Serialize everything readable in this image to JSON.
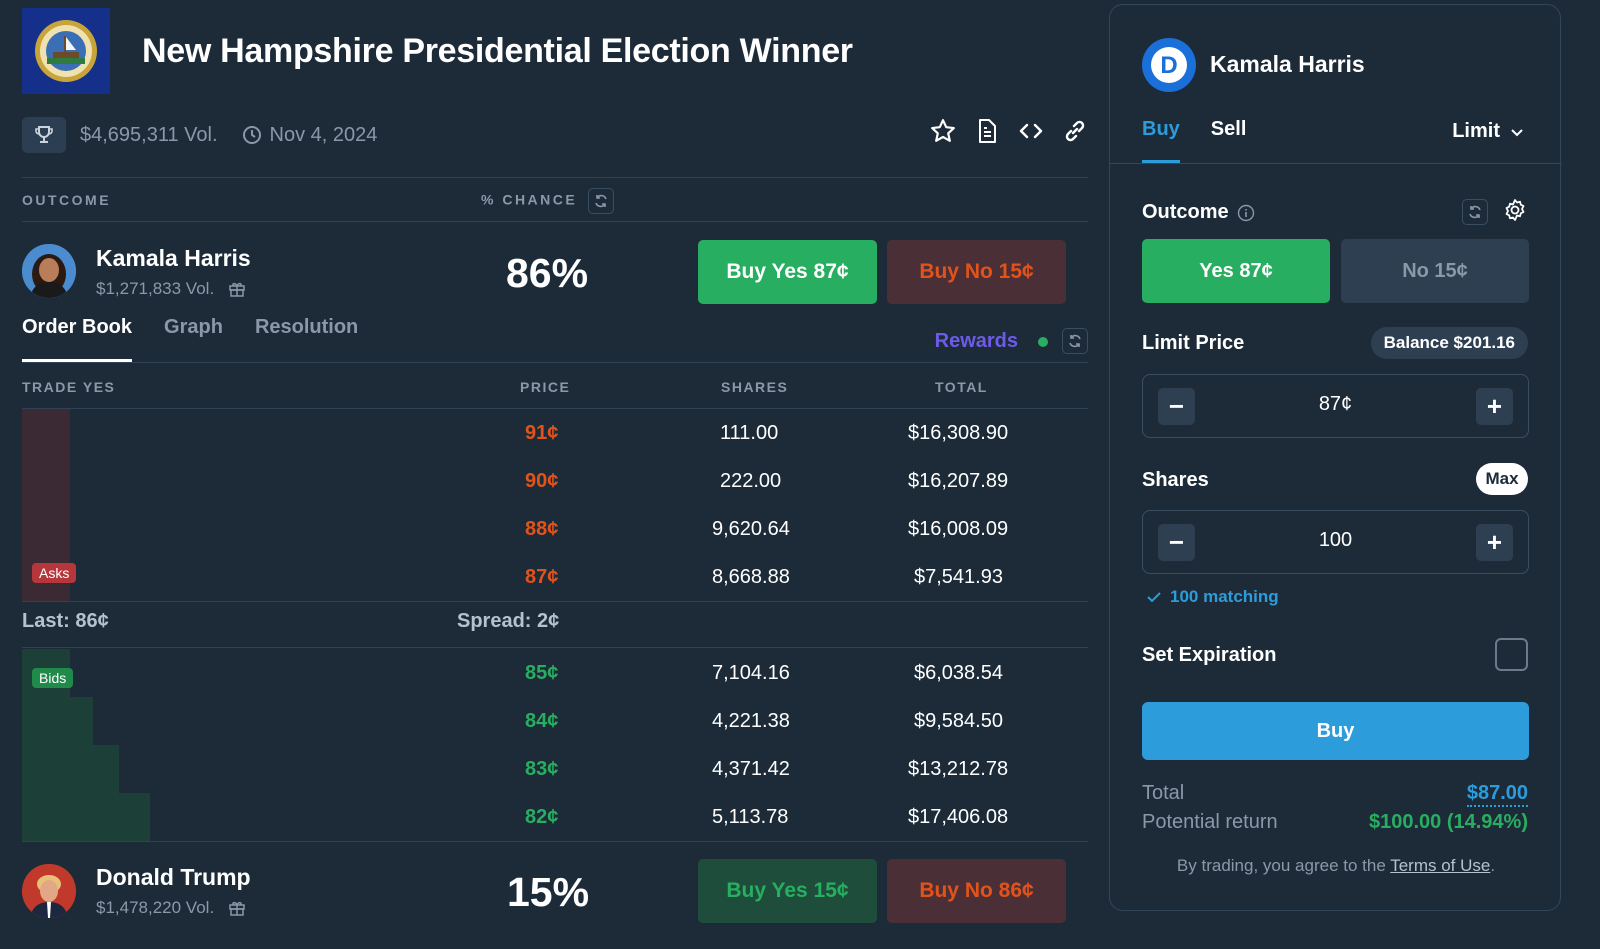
{
  "market": {
    "title": "New Hampshire Presidential Election Winner",
    "volume": "$4,695,311 Vol.",
    "date": "Nov 4, 2024"
  },
  "table_headers": {
    "outcome": "OUTCOME",
    "chance": "% CHANCE"
  },
  "candidates": [
    {
      "name": "Kamala Harris",
      "volume": "$1,271,833 Vol.",
      "chance": "86%",
      "buy_yes": "Buy Yes 87¢",
      "buy_no": "Buy No 15¢"
    },
    {
      "name": "Donald Trump",
      "volume": "$1,478,220 Vol.",
      "chance": "15%",
      "buy_yes": "Buy Yes 15¢",
      "buy_no": "Buy No 86¢"
    }
  ],
  "tabs": [
    "Order Book",
    "Graph",
    "Resolution"
  ],
  "rewards_label": "Rewards",
  "orderbook": {
    "headers": {
      "trade": "TRADE YES",
      "price": "PRICE",
      "shares": "SHARES",
      "total": "TOTAL"
    },
    "asks_label": "Asks",
    "bids_label": "Bids",
    "asks": [
      {
        "price": "91¢",
        "shares": "111.00",
        "total": "$16,308.90"
      },
      {
        "price": "90¢",
        "shares": "222.00",
        "total": "$16,207.89"
      },
      {
        "price": "88¢",
        "shares": "9,620.64",
        "total": "$16,008.09"
      },
      {
        "price": "87¢",
        "shares": "8,668.88",
        "total": "$7,541.93"
      }
    ],
    "last": "Last: 86¢",
    "spread": "Spread: 2¢",
    "bids": [
      {
        "price": "85¢",
        "shares": "7,104.16",
        "total": "$6,038.54"
      },
      {
        "price": "84¢",
        "shares": "4,221.38",
        "total": "$9,584.50"
      },
      {
        "price": "83¢",
        "shares": "4,371.42",
        "total": "$13,212.78"
      },
      {
        "price": "82¢",
        "shares": "5,113.78",
        "total": "$17,406.08"
      }
    ]
  },
  "panel": {
    "candidate": "Kamala Harris",
    "avatar_letter": "D",
    "tab_buy": "Buy",
    "tab_sell": "Sell",
    "order_type": "Limit",
    "outcome_label": "Outcome",
    "yes_btn": "Yes 87¢",
    "no_btn": "No 15¢",
    "limit_price_label": "Limit Price",
    "balance": "Balance $201.16",
    "limit_price": "87¢",
    "shares_label": "Shares",
    "max_label": "Max",
    "shares": "100",
    "matching": "100 matching",
    "expiration_label": "Set Expiration",
    "buy_label": "Buy",
    "total_label": "Total",
    "total_value": "$87.00",
    "return_label": "Potential return",
    "return_value": "$100.00 (14.94%)",
    "terms_prefix": "By trading, you agree to the ",
    "terms_link": "Terms of Use",
    "terms_suffix": "."
  },
  "colors": {
    "background": "#1d2b39",
    "yes_green": "#27ae60",
    "no_orange": "#e2531a",
    "accent_blue": "#2d9cdb",
    "rewards_purple": "#6d5be8"
  }
}
